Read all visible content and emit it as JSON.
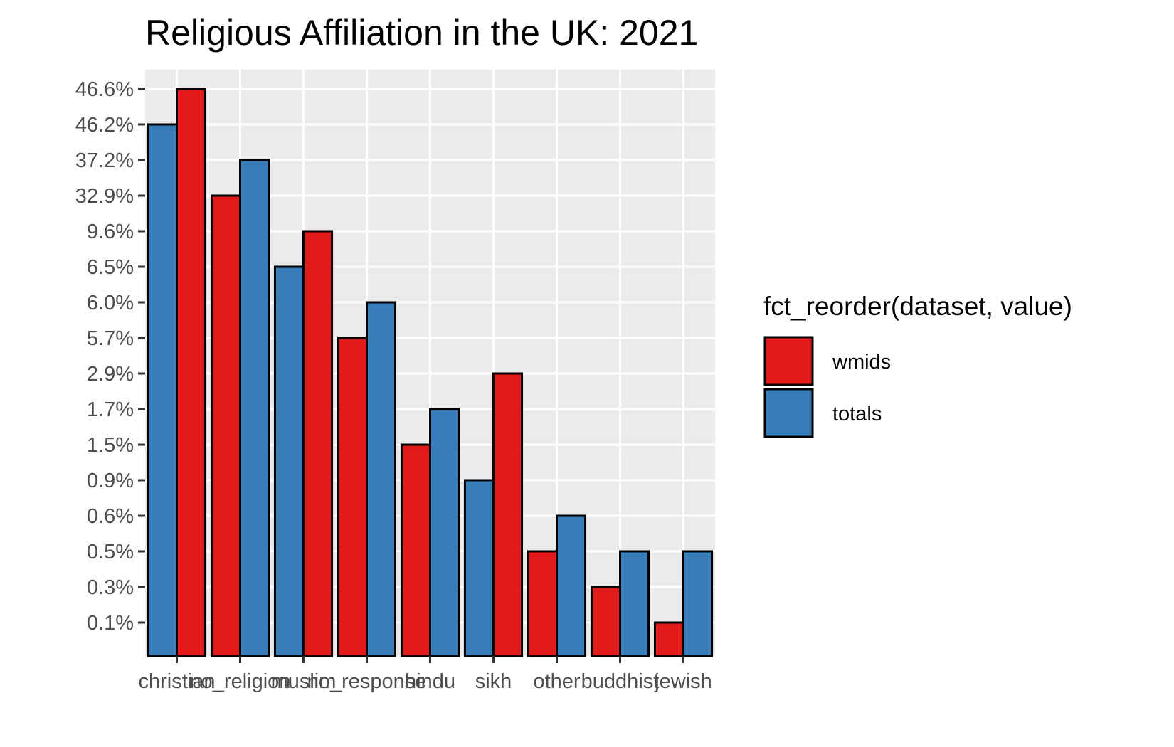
{
  "chart_data": {
    "type": "bar",
    "title": "Religious Affiliation in the UK: 2021",
    "xlabel": "",
    "ylabel": "",
    "y_scale": "ordinal-labels",
    "y_tick_labels": [
      "0.1%",
      "0.3%",
      "0.5%",
      "0.6%",
      "0.9%",
      "1.5%",
      "1.7%",
      "2.9%",
      "5.7%",
      "6.0%",
      "6.5%",
      "9.6%",
      "32.9%",
      "37.2%",
      "46.2%",
      "46.6%"
    ],
    "categories": [
      "christian",
      "no_religion",
      "muslim",
      "no_response",
      "hindu",
      "sikh",
      "other",
      "buddhist",
      "jewish"
    ],
    "category_tick_labels": [
      {
        "label": "christian",
        "anchor_category": 0
      },
      {
        "label": "no_religion",
        "anchor_category": 1
      },
      {
        "label": "muslim",
        "anchor_category": 2
      },
      {
        "label": "no_response",
        "anchor_category": 3
      },
      {
        "label": "hindu",
        "anchor_category": 4
      },
      {
        "label": "sikh",
        "anchor_category": 5
      },
      {
        "label": "other",
        "anchor_category": 6
      },
      {
        "label": "buddhist",
        "anchor_category": 7
      },
      {
        "label": "jewish",
        "anchor_category": 8
      }
    ],
    "bars": [
      {
        "category": "christian",
        "series": "totals",
        "value": "46.2%"
      },
      {
        "category": "christian",
        "series": "wmids",
        "value": "46.6%"
      },
      {
        "category": "no_religion",
        "series": "wmids",
        "value": "32.9%"
      },
      {
        "category": "no_religion",
        "series": "totals",
        "value": "37.2%"
      },
      {
        "category": "muslim",
        "series": "totals",
        "value": "6.5%"
      },
      {
        "category": "muslim",
        "series": "wmids",
        "value": "9.6%"
      },
      {
        "category": "no_response",
        "series": "wmids",
        "value": "5.7%"
      },
      {
        "category": "no_response",
        "series": "totals",
        "value": "6.0%"
      },
      {
        "category": "hindu",
        "series": "wmids",
        "value": "1.5%"
      },
      {
        "category": "hindu",
        "series": "totals",
        "value": "1.7%"
      },
      {
        "category": "sikh",
        "series": "totals",
        "value": "0.9%"
      },
      {
        "category": "sikh",
        "series": "wmids",
        "value": "2.9%"
      },
      {
        "category": "other",
        "series": "wmids",
        "value": "0.5%"
      },
      {
        "category": "other",
        "series": "totals",
        "value": "0.6%"
      },
      {
        "category": "buddhist",
        "series": "wmids",
        "value": "0.3%"
      },
      {
        "category": "buddhist",
        "series": "totals",
        "value": "0.5%"
      },
      {
        "category": "jewish",
        "series": "wmids",
        "value": "0.1%"
      },
      {
        "category": "jewish",
        "series": "totals",
        "value": "0.5%"
      }
    ],
    "legend": {
      "title": "fct_reorder(dataset, value)",
      "placement": "right",
      "entries": [
        {
          "name": "wmids",
          "color": "#e31a1c"
        },
        {
          "name": "totals",
          "color": "#377eb8"
        }
      ]
    },
    "colors": {
      "panel_background": "#ebebeb",
      "gridline": "#ffffff",
      "bar_outline": "#000000"
    },
    "grid": true
  }
}
